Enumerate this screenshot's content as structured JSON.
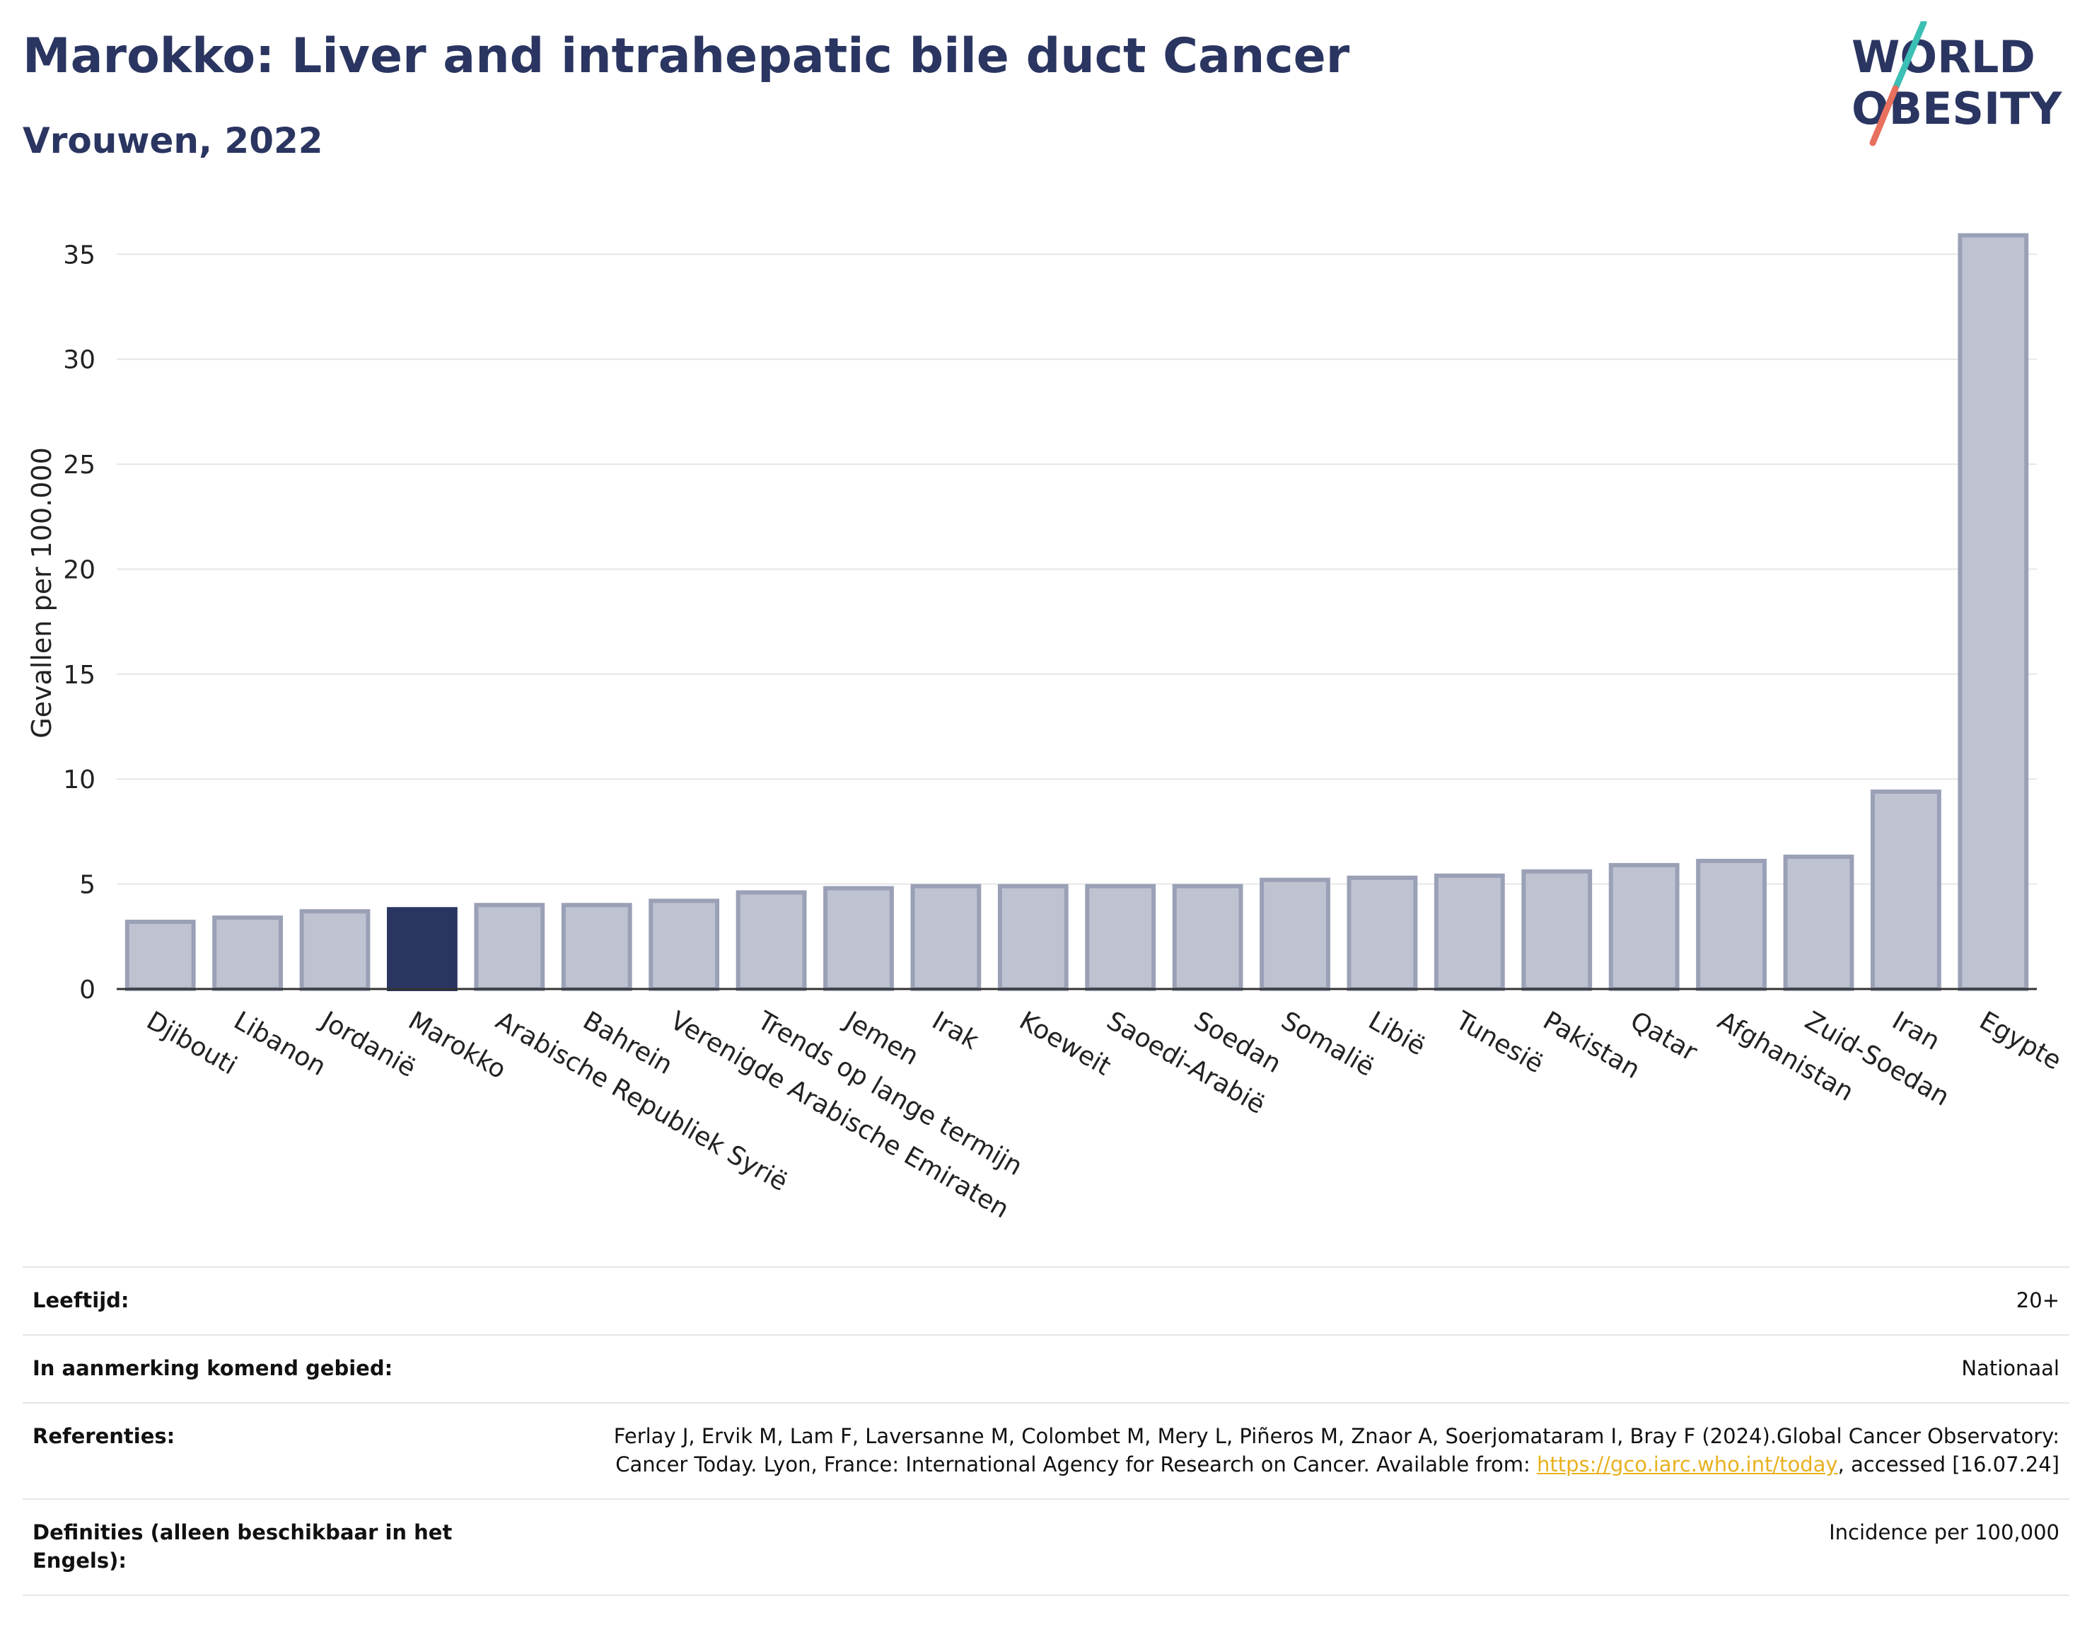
{
  "header": {
    "title": "Marokko: Liver and intrahepatic bile duct Cancer",
    "subtitle": "Vrouwen, 2022"
  },
  "logo": {
    "line1": "WORLD",
    "line2": "OBESITY",
    "colors": {
      "text": "#2a3561",
      "slash_teal": "#3cbfb4",
      "slash_red": "#e8705e"
    }
  },
  "colors": {
    "highlight_bar": "#2a3561",
    "bar_fill": "#bfc3d1",
    "bar_stroke": "#9aa0b6",
    "grid": "#e6e6e6",
    "link": "#e8b11f"
  },
  "chart_data": {
    "type": "bar",
    "title": "",
    "xlabel": "",
    "ylabel": "Gevallen per 100.000",
    "ylim": [
      0,
      37
    ],
    "yticks": [
      0,
      5,
      10,
      15,
      20,
      25,
      30,
      35
    ],
    "grid": true,
    "highlight": "Marokko",
    "categories": [
      "Djibouti",
      "Libanon",
      "Jordanië",
      "Marokko",
      "Arabische Republiek Syrië",
      "Bahrein",
      "Verenigde Arabische Emiraten",
      "Trends op lange termijn",
      "Jemen",
      "Irak",
      "Koeweit",
      "Saoedi-Arabië",
      "Soedan",
      "Somalië",
      "Libië",
      "Tunesië",
      "Pakistan",
      "Qatar",
      "Afghanistan",
      "Zuid-Soedan",
      "Iran",
      "Egypte"
    ],
    "values": [
      3.2,
      3.4,
      3.7,
      3.8,
      4.0,
      4.0,
      4.2,
      4.6,
      4.8,
      4.9,
      4.9,
      4.9,
      4.9,
      5.2,
      5.3,
      5.4,
      5.6,
      5.9,
      6.1,
      6.3,
      9.4,
      35.9
    ]
  },
  "meta": {
    "rows": [
      {
        "label": "Leeftijd:",
        "value": "20+"
      },
      {
        "label": "In aanmerking komend gebied:",
        "value": "Nationaal"
      },
      {
        "label": "Referenties:",
        "value_before": "Ferlay J, Ervik M, Lam F, Laversanne M, Colombet M, Mery L, Piñeros M, Znaor A, Soerjomataram I, Bray F (2024).Global Cancer Observatory: Cancer Today. Lyon, France: International Agency for Research on Cancer. Available from: ",
        "link": "https://gco.iarc.who.int/today",
        "value_after": ", accessed [16.07.24]"
      },
      {
        "label": "Definities (alleen beschikbaar in het Engels):",
        "value": "Incidence per 100,000"
      }
    ]
  }
}
